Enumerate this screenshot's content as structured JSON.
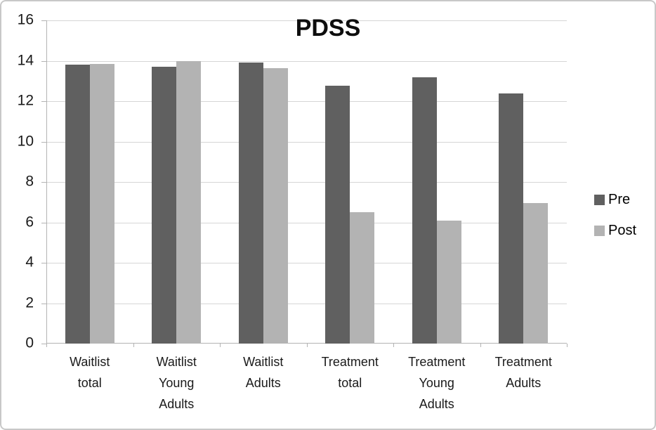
{
  "chart_data": {
    "type": "bar",
    "title": "PDSS",
    "categories": [
      "Waitlist total",
      "Waitlist Young Adults",
      "Waitlist Adults",
      "Treatment total",
      "Treatment Young Adults",
      "Treatment Adults"
    ],
    "series": [
      {
        "name": "Pre",
        "color": "#606060",
        "values": [
          13.8,
          13.7,
          13.9,
          12.75,
          13.2,
          12.4
        ]
      },
      {
        "name": "Post",
        "color": "#b3b3b3",
        "values": [
          13.85,
          14.0,
          13.65,
          6.5,
          6.1,
          6.95
        ]
      }
    ],
    "y_ticks": [
      0,
      2,
      4,
      6,
      8,
      10,
      12,
      14,
      16
    ],
    "ylim": [
      0,
      16
    ],
    "xlabel": "",
    "ylabel": "",
    "grid": "horizontal",
    "legend_position": "right"
  },
  "colors": {
    "gridline": "#d6d6d6",
    "axis": "#b3b3b3",
    "border": "#c8c8c8",
    "tick_label": "#1a1a1a",
    "title": "#0d0d0d"
  }
}
